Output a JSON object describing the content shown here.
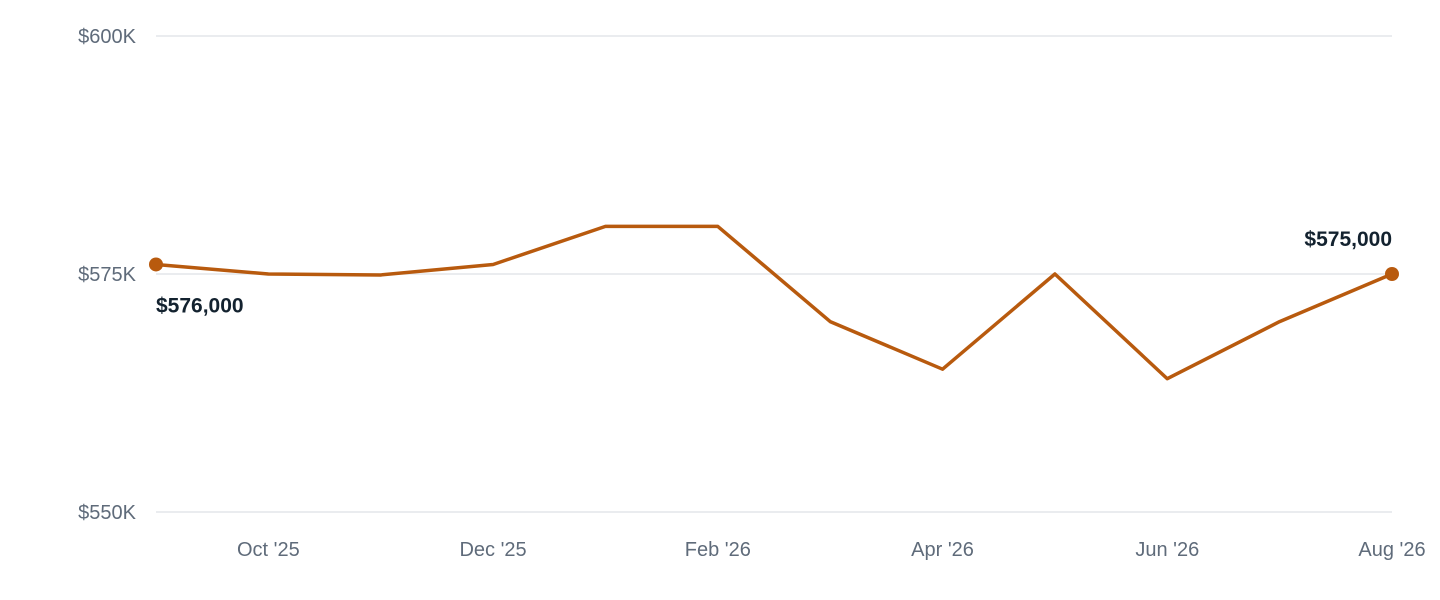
{
  "chart_data": {
    "type": "line",
    "title": "",
    "xlabel": "",
    "ylabel": "",
    "ylim": [
      550000,
      600000
    ],
    "grid": true,
    "y_ticks": [
      {
        "value": 600000,
        "label": "$600K"
      },
      {
        "value": 575000,
        "label": "$575K"
      },
      {
        "value": 550000,
        "label": "$550K"
      }
    ],
    "x_ticks": [
      {
        "index": 1,
        "label": "Oct '25"
      },
      {
        "index": 3,
        "label": "Dec '25"
      },
      {
        "index": 5,
        "label": "Feb '26"
      },
      {
        "index": 7,
        "label": "Apr '26"
      },
      {
        "index": 9,
        "label": "Jun '26"
      },
      {
        "index": 11,
        "label": "Aug '26"
      }
    ],
    "series": [
      {
        "color": "#b85a0e",
        "x": [
          "2025-09",
          "2025-10",
          "2025-11",
          "2025-12",
          "2026-01",
          "2026-02",
          "2026-03",
          "2026-04",
          "2026-05",
          "2026-06",
          "2026-07",
          "2026-08"
        ],
        "values": [
          576000,
          575000,
          574900,
          576000,
          580000,
          580000,
          570000,
          565000,
          575000,
          564000,
          570000,
          575000
        ]
      }
    ],
    "annotations": [
      {
        "index": 0,
        "label": "$576,000",
        "placement": "below"
      },
      {
        "index": 11,
        "label": "$575,000",
        "placement": "above"
      }
    ]
  }
}
